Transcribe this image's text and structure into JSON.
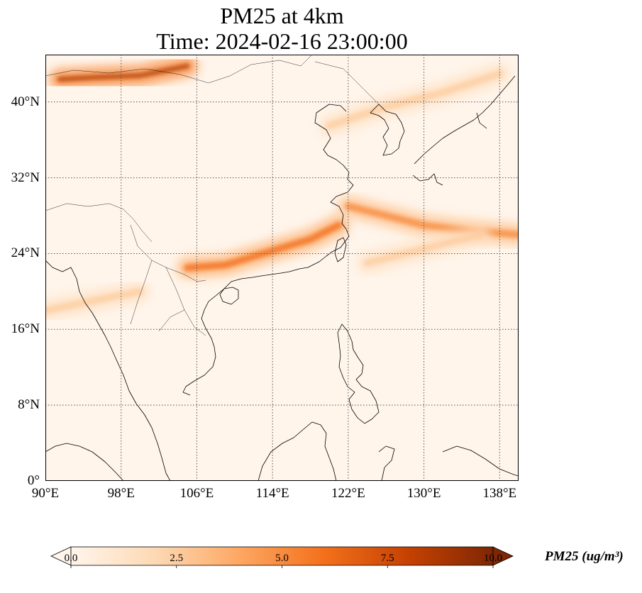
{
  "title": {
    "line1": "PM25 at 4km",
    "line2": "Time: 2024-02-16 23:00:00"
  },
  "map": {
    "extent": {
      "lon": [
        90,
        140
      ],
      "lat": [
        0,
        45
      ]
    },
    "lat_ticks": [
      {
        "value": 0,
        "label": "0°"
      },
      {
        "value": 8,
        "label": "8°N"
      },
      {
        "value": 16,
        "label": "16°N"
      },
      {
        "value": 24,
        "label": "24°N"
      },
      {
        "value": 32,
        "label": "32°N"
      },
      {
        "value": 40,
        "label": "40°N"
      }
    ],
    "lon_ticks": [
      {
        "value": 90,
        "label": "90°E"
      },
      {
        "value": 98,
        "label": "98°E"
      },
      {
        "value": 106,
        "label": "106°E"
      },
      {
        "value": 114,
        "label": "114°E"
      },
      {
        "value": 122,
        "label": "122°E"
      },
      {
        "value": 130,
        "label": "130°E"
      },
      {
        "value": 138,
        "label": "138°E"
      }
    ],
    "gridlines": true,
    "background_color": "#fff5eb",
    "plumes": [
      {
        "lon": [
          91.5,
          95,
          100,
          105
        ],
        "lat": [
          42.4,
          42.6,
          42.8,
          43.8
        ],
        "value": 8.5
      },
      {
        "lon": [
          105,
          109,
          113,
          118,
          121
        ],
        "lat": [
          22.5,
          22.8,
          24.0,
          25.5,
          27.0
        ],
        "value": 6.0
      },
      {
        "lon": [
          122,
          126,
          130,
          134,
          140
        ],
        "lat": [
          29.0,
          28.0,
          27.0,
          26.5,
          26.0
        ],
        "value": 5.0
      },
      {
        "lon": [
          90,
          95,
          100
        ],
        "lat": [
          18.0,
          19.0,
          20.0
        ],
        "value": 2.5
      },
      {
        "lon": [
          120,
          126,
          132,
          138
        ],
        "lat": [
          37.5,
          39.5,
          41.0,
          43.0
        ],
        "value": 2.5
      },
      {
        "lon": [
          124,
          130,
          136
        ],
        "lat": [
          23.0,
          24.5,
          26.0
        ],
        "value": 2.5
      }
    ]
  },
  "colorbar": {
    "label": "PM25 (ug/m³)",
    "min": 0.0,
    "max": 10.0,
    "ticks": [
      {
        "value": 0.0,
        "label": "0.0"
      },
      {
        "value": 2.5,
        "label": "2.5"
      },
      {
        "value": 5.0,
        "label": "5.0"
      },
      {
        "value": 7.5,
        "label": "7.5"
      },
      {
        "value": 10.0,
        "label": "10.0"
      }
    ],
    "colormap": [
      "#fff5eb",
      "#fdd9b4",
      "#fda762",
      "#f3701b",
      "#c54102",
      "#7f2704"
    ],
    "extend": "both"
  }
}
